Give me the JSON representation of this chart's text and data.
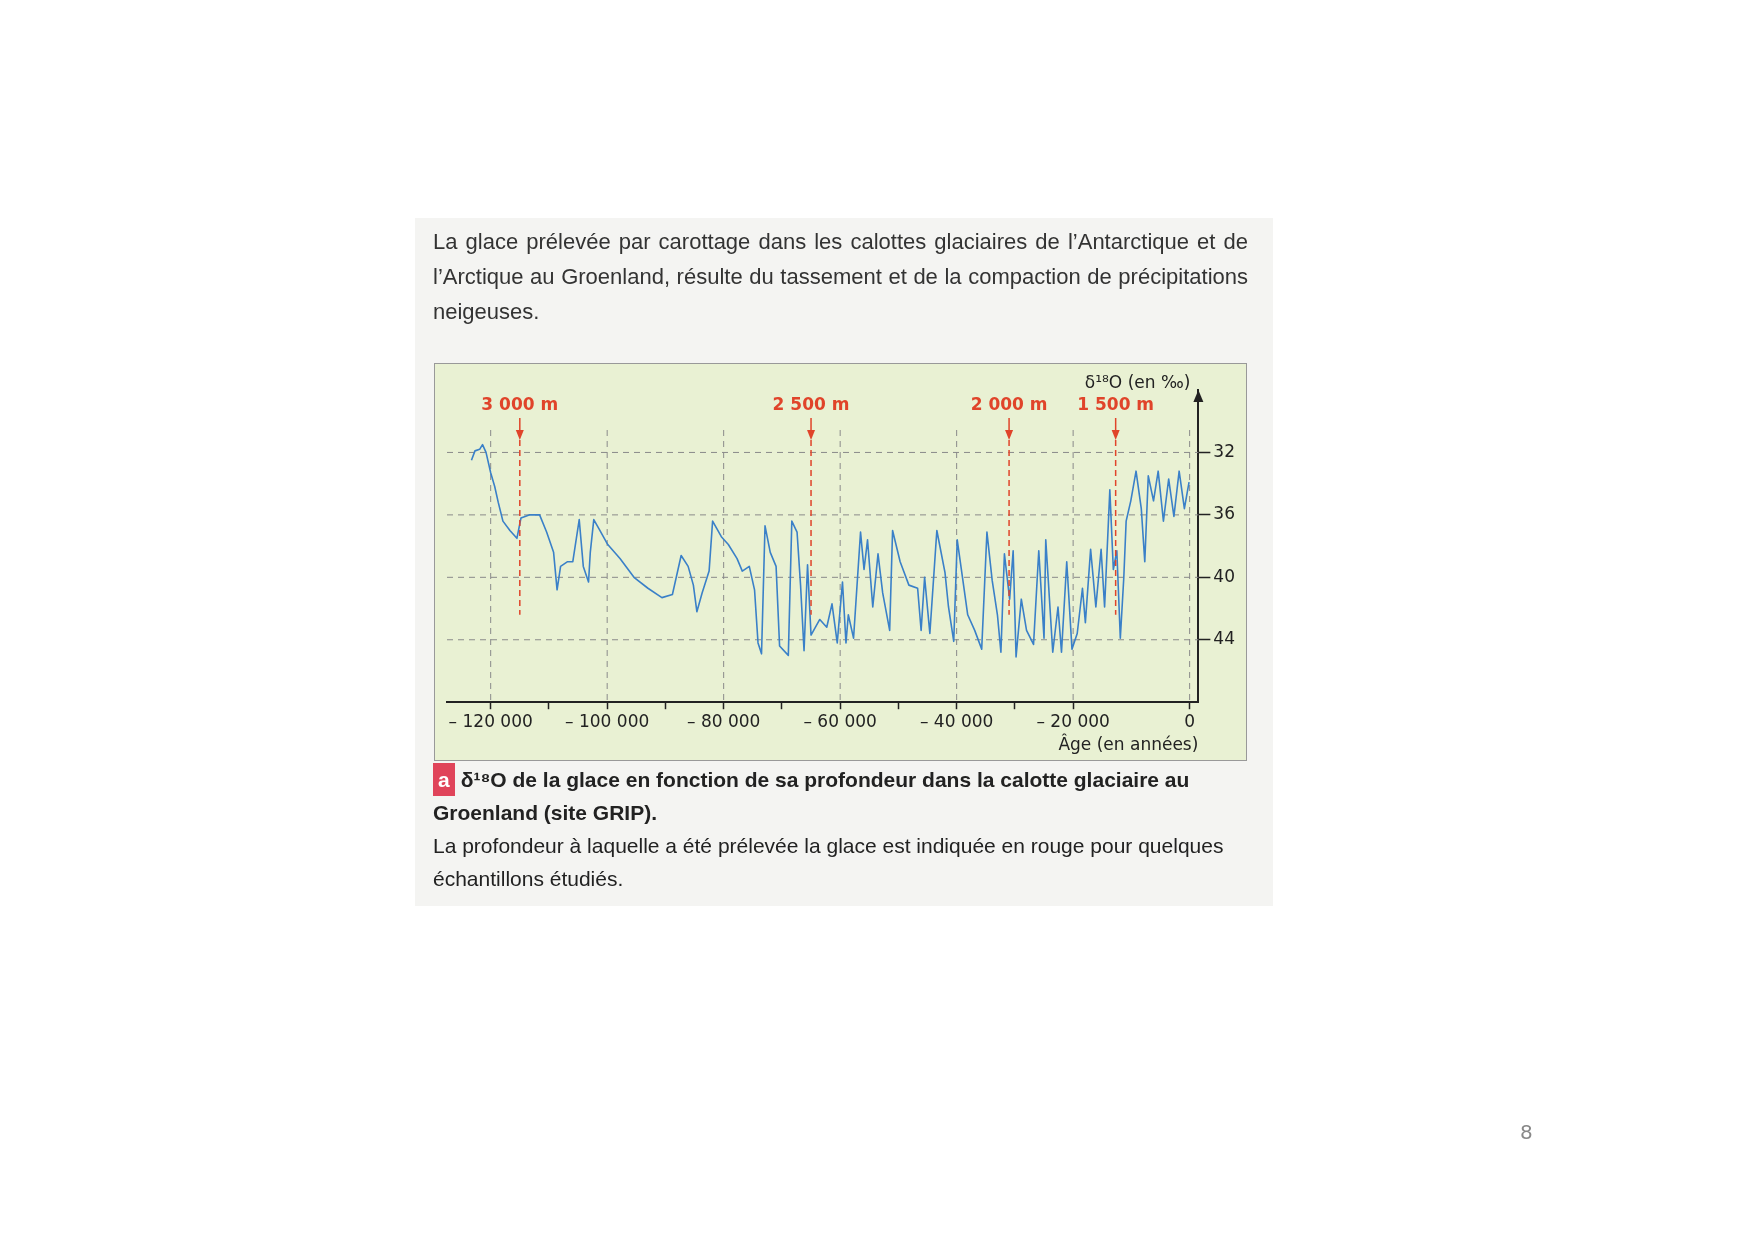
{
  "chart_data": {
    "type": "line",
    "title": "δ¹⁸O de la glace en fonction de sa profondeur dans la calotte glaciaire au Groenland (site GRIP).",
    "subtitle": "La profondeur à laquelle a été prélevée la glace est indiquée en rouge pour quelques échantillons étudiés.",
    "xlabel": "Âge (en années)",
    "ylabel": "δ¹⁸O (en ‰)",
    "annotations": [
      "La glace prélevée par carottage dans les calottes glaciaires de l’Antarctique et de l’Arctique au Groenland, résulte du tassement et de la compaction de précipitations neigeuses.",
      "a",
      "8"
    ],
    "x": [
      -123300,
      -122700,
      -121900,
      -121400,
      -120800,
      -120000,
      -119300,
      -118700,
      -117900,
      -116700,
      -115500,
      -114800,
      -113400,
      -111600,
      -110400,
      -109200,
      -108600,
      -108000,
      -106800,
      -105900,
      -104800,
      -104100,
      -103200,
      -102900,
      -102300,
      -101400,
      -99900,
      -97800,
      -95400,
      -93000,
      -90600,
      -88800,
      -87300,
      -86100,
      -85200,
      -84600,
      -83700,
      -82500,
      -81900,
      -80400,
      -79200,
      -77700,
      -76800,
      -75600,
      -74700,
      -74100,
      -73500,
      -72900,
      -72000,
      -71000,
      -70400,
      -68900,
      -68300,
      -67400,
      -66800,
      -66200,
      -65600,
      -65000,
      -63500,
      -62300,
      -61400,
      -60500,
      -59600,
      -59000,
      -58600,
      -57700,
      -56500,
      -55900,
      -55300,
      -54400,
      -53500,
      -52700,
      -51500,
      -51000,
      -49700,
      -48200,
      -46700,
      -46100,
      -45500,
      -44600,
      -43400,
      -42000,
      -41400,
      -40500,
      -39900,
      -39000,
      -38100,
      -36900,
      -35700,
      -34800,
      -33900,
      -33000,
      -32400,
      -31800,
      -30900,
      -30300,
      -29800,
      -28900,
      -28000,
      -26800,
      -25900,
      -25000,
      -24700,
      -23500,
      -22600,
      -22000,
      -21100,
      -20200,
      -19300,
      -18400,
      -17900,
      -17000,
      -16100,
      -15200,
      -14600,
      -13700,
      -13100,
      -12500,
      -11900,
      -11300,
      -10900,
      -10100,
      -9200,
      -8300,
      -7700,
      -7100,
      -6200,
      -5400,
      -4500,
      -3600,
      -2700,
      -1800,
      -900,
      -100
    ],
    "series": [
      {
        "color": "#3a80c8",
        "values": [
          32.5,
          31.9,
          31.8,
          31.5,
          32.0,
          33.3,
          34.2,
          35.2,
          36.4,
          37.0,
          37.5,
          36.2,
          36.0,
          36.0,
          37.1,
          38.4,
          40.8,
          39.3,
          39.0,
          39.0,
          36.3,
          39.3,
          40.3,
          38.4,
          36.3,
          36.9,
          37.9,
          38.8,
          40.0,
          40.7,
          41.3,
          41.1,
          38.6,
          39.3,
          40.5,
          42.2,
          41.0,
          39.6,
          36.4,
          37.4,
          37.9,
          38.8,
          39.6,
          39.3,
          40.8,
          44.2,
          44.9,
          36.7,
          38.4,
          39.3,
          44.4,
          45.0,
          36.4,
          37.1,
          40.5,
          44.7,
          39.2,
          43.7,
          42.7,
          43.2,
          41.7,
          44.2,
          40.3,
          44.2,
          42.4,
          43.9,
          37.1,
          39.5,
          37.6,
          41.9,
          38.5,
          41.0,
          43.4,
          37.0,
          39.0,
          40.5,
          40.7,
          43.4,
          40.0,
          43.6,
          37.0,
          39.7,
          41.9,
          44.1,
          37.6,
          40.0,
          42.4,
          43.4,
          44.6,
          37.1,
          40.2,
          42.4,
          44.8,
          38.5,
          41.4,
          38.3,
          45.1,
          41.4,
          43.4,
          44.3,
          38.3,
          43.9,
          37.6,
          44.8,
          41.9,
          44.8,
          39.0,
          44.6,
          43.6,
          40.7,
          42.9,
          38.2,
          41.9,
          38.2,
          41.9,
          34.4,
          39.5,
          38.3,
          43.9,
          40.0,
          36.4,
          35.1,
          33.2,
          35.6,
          39.0,
          33.5,
          35.1,
          33.2,
          36.4,
          33.7,
          36.1,
          33.2,
          35.6,
          33.9
        ]
      }
    ],
    "xlim": [
      -127500,
      1500
    ],
    "ylim": [
      48,
      28
    ],
    "xticks": [
      {
        "value": -120000,
        "label": "– 120 000"
      },
      {
        "value": -110000,
        "label": null
      },
      {
        "value": -100000,
        "label": "– 100 000"
      },
      {
        "value": -90000,
        "label": null
      },
      {
        "value": -80000,
        "label": "– 80 000"
      },
      {
        "value": -70000,
        "label": null
      },
      {
        "value": -60000,
        "label": "– 60 000"
      },
      {
        "value": -50000,
        "label": null
      },
      {
        "value": -40000,
        "label": "– 40 000"
      },
      {
        "value": -30000,
        "label": null
      },
      {
        "value": -20000,
        "label": "– 20 000"
      },
      0
    ],
    "yticks": [
      32,
      36,
      40,
      44
    ],
    "ref_lines": [
      {
        "axis": "x",
        "value": -115000,
        "label": "3 000 m",
        "color": "#e0442a",
        "line_style": "dashed"
      },
      {
        "axis": "x",
        "value": -65000,
        "label": "2 500 m",
        "color": "#e0442a",
        "line_style": "dashed"
      },
      {
        "axis": "x",
        "value": -31000,
        "label": "2 000 m",
        "color": "#e0442a",
        "line_style": "dashed"
      },
      {
        "axis": "x",
        "value": -12700,
        "label": "1 500 m",
        "color": "#e0442a",
        "line_style": "dashed"
      }
    ],
    "grid": true,
    "legend": false,
    "marker": "none",
    "line_style": "solid"
  }
}
